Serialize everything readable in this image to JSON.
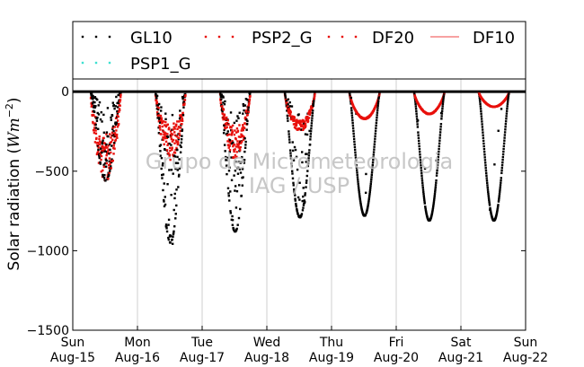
{
  "chart_data": {
    "type": "scatter",
    "title": "",
    "xlabel": "",
    "ylabel": "Solar radiation ($Wm^{-2}$)",
    "ylabel_parts": {
      "main": "Solar radiation (",
      "unit": "Wm",
      "sup": "−2",
      "close": ")"
    },
    "ylim": [
      -1500,
      80
    ],
    "yticks": [
      {
        "value": 0,
        "label": "0"
      },
      {
        "value": -500,
        "label": "−500"
      },
      {
        "value": -1000,
        "label": "−1000"
      },
      {
        "value": -1500,
        "label": "−1500"
      }
    ],
    "xlim": [
      "2016-08-15",
      "2016-08-22"
    ],
    "xticks": [
      {
        "day": "Sun",
        "date": "Aug-15"
      },
      {
        "day": "Mon",
        "date": "Aug-16"
      },
      {
        "day": "Tue",
        "date": "Aug-17"
      },
      {
        "day": "Wed",
        "date": "Aug-18"
      },
      {
        "day": "Thu",
        "date": "Aug-19"
      },
      {
        "day": "Fri",
        "date": "Aug-20"
      },
      {
        "day": "Sat",
        "date": "Aug-21"
      },
      {
        "day": "Sun",
        "date": "Aug-22"
      }
    ],
    "grid": "vertical",
    "legend_position": "top",
    "watermark": [
      "Grupo de Micrometeorologia",
      "IAG / USP"
    ],
    "series": [
      {
        "name": "GL10",
        "color": "#000000",
        "style": "dots",
        "daily_min": [
          -560,
          -950,
          -880,
          -790,
          -780,
          -810,
          -810
        ]
      },
      {
        "name": "PSP2_G",
        "color": "#e8100c",
        "style": "dots",
        "daily_min": [
          -430,
          -330,
          -330,
          -220,
          -170,
          -140,
          -95
        ]
      },
      {
        "name": "DF20",
        "color": "#e8100c",
        "style": "dots",
        "daily_min": [
          -430,
          -330,
          -330,
          -220,
          -170,
          -140,
          -95
        ]
      },
      {
        "name": "DF10",
        "color": "#f26a6a",
        "style": "line",
        "daily_min": [
          0,
          0,
          0,
          0,
          0,
          0,
          0
        ]
      },
      {
        "name": "PSP1_G",
        "color": "#3ee0d0",
        "style": "dots",
        "daily_min": [
          0,
          0,
          0,
          0,
          0,
          0,
          0
        ]
      }
    ],
    "sunrise_hour": 6.6,
    "sunset_hour": 17.9
  }
}
